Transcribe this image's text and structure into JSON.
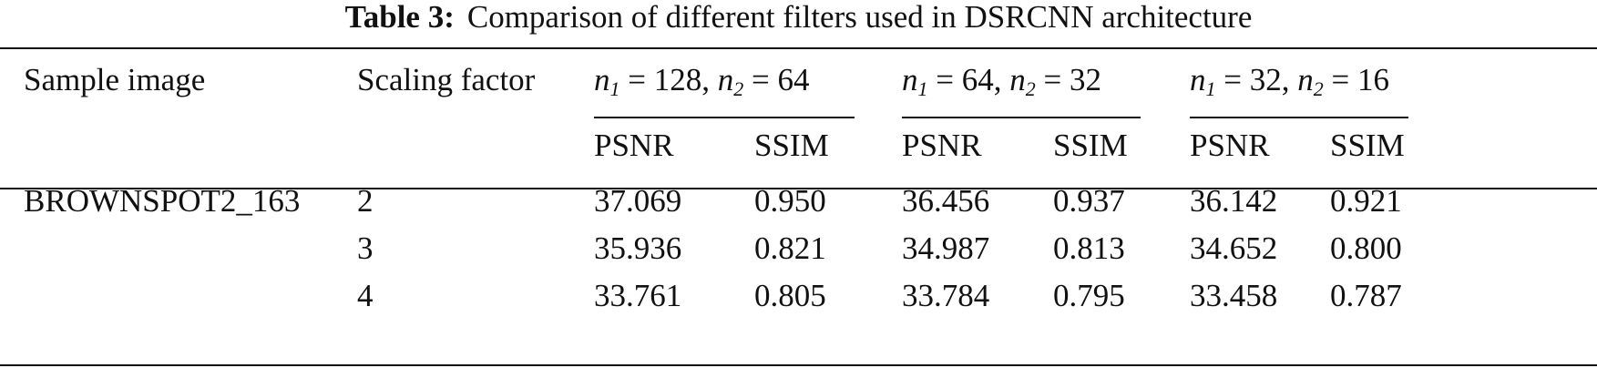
{
  "caption": {
    "label": "Table 3:",
    "text": "Comparison of different filters used in DSRCNN architecture"
  },
  "header": {
    "sample_image": "Sample image",
    "scaling_factor": "Scaling factor",
    "groups": [
      {
        "n1": "128",
        "n2": "64"
      },
      {
        "n1": "64",
        "n2": "32"
      },
      {
        "n1": "32",
        "n2": "16"
      }
    ],
    "n_symbol": "n",
    "sub1": "1",
    "sub2": "2",
    "eq": " = ",
    "sep": ", ",
    "psnr": "PSNR",
    "ssim": "SSIM"
  },
  "rows": [
    {
      "sample": "BROWNSPOT2_163",
      "scale": "2",
      "values": [
        "37.069",
        "0.950",
        "36.456",
        "0.937",
        "36.142",
        "0.921"
      ]
    },
    {
      "sample": "",
      "scale": "3",
      "values": [
        "35.936",
        "0.821",
        "34.987",
        "0.813",
        "34.652",
        "0.800"
      ]
    },
    {
      "sample": "",
      "scale": "4",
      "values": [
        "33.761",
        "0.805",
        "33.784",
        "0.795",
        "33.458",
        "0.787"
      ]
    }
  ]
}
